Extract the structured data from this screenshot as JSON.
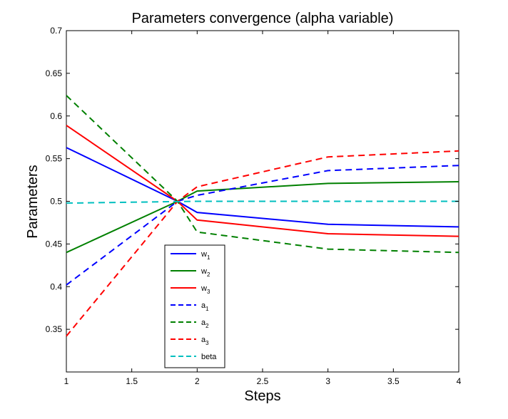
{
  "chart_data": {
    "type": "line",
    "title": "Parameters convergence (alpha variable)",
    "xlabel": "Steps",
    "ylabel": "Parameters",
    "xlim": [
      1,
      4
    ],
    "ylim": [
      0.3,
      0.7
    ],
    "xticks": [
      1,
      1.5,
      2,
      2.5,
      3,
      3.5,
      4
    ],
    "yticks": [
      0.35,
      0.4,
      0.45,
      0.5,
      0.55,
      0.6,
      0.65,
      0.7
    ],
    "xtick_labels": [
      "1",
      "1.5",
      "2",
      "2.5",
      "3",
      "3.5",
      "4"
    ],
    "ytick_labels": [
      "0.35",
      "0.4",
      "0.45",
      "0.5",
      "0.55",
      "0.6",
      "0.65",
      "0.7"
    ],
    "grid": false,
    "legend_position": "bottom-left (inside)",
    "series": [
      {
        "name": "w",
        "sub": "1",
        "color": "#0000ff",
        "dash": "solid",
        "x": [
          1,
          1.85,
          2,
          3,
          4
        ],
        "y": [
          0.563,
          0.5,
          0.487,
          0.473,
          0.47
        ]
      },
      {
        "name": "w",
        "sub": "2",
        "color": "#008000",
        "dash": "solid",
        "x": [
          1,
          1.85,
          2,
          3,
          4
        ],
        "y": [
          0.44,
          0.5,
          0.512,
          0.521,
          0.523
        ]
      },
      {
        "name": "w",
        "sub": "3",
        "color": "#ff0000",
        "dash": "solid",
        "x": [
          1,
          1.85,
          2,
          3,
          4
        ],
        "y": [
          0.589,
          0.5,
          0.478,
          0.462,
          0.459
        ]
      },
      {
        "name": "a",
        "sub": "1",
        "color": "#0000ff",
        "dash": "dashed",
        "x": [
          1,
          1.85,
          2,
          3,
          4
        ],
        "y": [
          0.402,
          0.5,
          0.507,
          0.536,
          0.542
        ]
      },
      {
        "name": "a",
        "sub": "2",
        "color": "#008000",
        "dash": "dashed",
        "x": [
          1,
          1.85,
          2,
          3,
          4
        ],
        "y": [
          0.624,
          0.5,
          0.464,
          0.444,
          0.44
        ]
      },
      {
        "name": "a",
        "sub": "3",
        "color": "#ff0000",
        "dash": "dashed",
        "x": [
          1,
          1.85,
          2,
          3,
          4
        ],
        "y": [
          0.342,
          0.5,
          0.517,
          0.552,
          0.559
        ]
      },
      {
        "name": "beta",
        "sub": "",
        "color": "#00bfbf",
        "dash": "dashed",
        "x": [
          1,
          1.05,
          2,
          3,
          4
        ],
        "y": [
          0.498,
          0.498,
          0.5,
          0.5,
          0.5
        ]
      }
    ]
  }
}
